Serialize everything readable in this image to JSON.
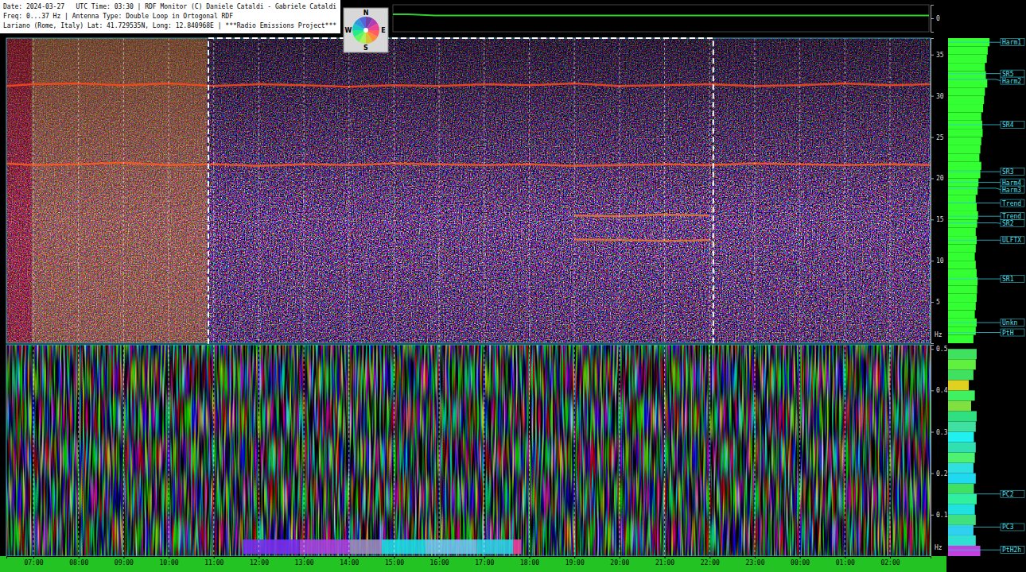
{
  "header": {
    "lines": [
      "Date: 2024-03-27   UTC Time: 03:30 | RDF Monitor (C) Daniele Cataldi - Gabriele Cataldi",
      "Freq: 0...37 Hz | Antenna Type: Double Loop in Ortogonal RDF",
      "Lariano (Rome, Italy) Lat: 41.729535N, Long: 12.840968E | ***Radio Emissions Project***"
    ]
  },
  "compass": {
    "labels": [
      "N",
      "E",
      "S",
      "W"
    ]
  },
  "chart_data": [
    {
      "type": "line",
      "tick_labels": "y",
      "xlim": [
        6.4,
        26.9
      ],
      "ylim": [
        -10,
        10
      ],
      "yticks": [
        0
      ],
      "x": [
        6.4,
        7,
        8,
        9,
        10,
        11,
        12,
        13,
        14,
        15,
        16,
        17,
        18,
        19,
        20,
        21,
        22,
        23,
        24,
        25,
        26,
        26.9
      ],
      "series": [
        {
          "color": "#2fd02f",
          "values": [
            3,
            3,
            2,
            2,
            2,
            2,
            2,
            2,
            2,
            2,
            2,
            2,
            2,
            2,
            2,
            2,
            2,
            2,
            2,
            2,
            2,
            2
          ]
        }
      ]
    },
    {
      "type": "spectrogram",
      "y_label": "Hz",
      "tick_labels": "y",
      "grid": true,
      "xlim": [
        6.4,
        26.9
      ],
      "ylim": [
        0,
        37
      ],
      "xticks": [
        7,
        8,
        9,
        10,
        11,
        12,
        13,
        14,
        15,
        16,
        17,
        18,
        19,
        20,
        21,
        22,
        23,
        24,
        25,
        26
      ],
      "yticks": [
        5,
        10,
        15,
        20,
        25,
        30,
        35
      ],
      "x": [
        6.4,
        7,
        8,
        9,
        10,
        11,
        12,
        13,
        14,
        15,
        16,
        17,
        18,
        19,
        20,
        21,
        22,
        23,
        24,
        25,
        26,
        26.9
      ],
      "series": [
        {
          "color": "#ff4a1a",
          "values": [
            31.2,
            31.4,
            31.5,
            31.3,
            31.5,
            31.2,
            31.4,
            31.3,
            31.1,
            31.3,
            31.2,
            31.4,
            31.3,
            31.5,
            31.2,
            31.3,
            31.4,
            31.2,
            31.3,
            31.5,
            31.3,
            31.4
          ]
        },
        {
          "color": "#ff5a20",
          "values": [
            21.8,
            21.6,
            21.7,
            21.9,
            21.6,
            21.7,
            21.5,
            21.7,
            21.6,
            21.8,
            21.7,
            21.6,
            21.7,
            21.5,
            21.6,
            21.7,
            21.6,
            21.8,
            21.7,
            21.6,
            21.7,
            21.6
          ]
        },
        {
          "color": "#e87830",
          "values": [
            null,
            null,
            null,
            null,
            null,
            null,
            null,
            null,
            null,
            null,
            null,
            null,
            null,
            15.5,
            15.4,
            15.6,
            15.5,
            null,
            null,
            null,
            null,
            null
          ]
        },
        {
          "color": "#e87830",
          "values": [
            null,
            null,
            null,
            null,
            null,
            null,
            null,
            null,
            null,
            null,
            null,
            null,
            null,
            12.6,
            12.5,
            12.4,
            12.5,
            null,
            null,
            null,
            null,
            null
          ]
        }
      ],
      "regions": [
        {
          "x": [
            6.4,
            6.96
          ],
          "color": "#d01c0c"
        },
        {
          "x": [
            6.96,
            10.85
          ],
          "color": "#d88a28"
        }
      ],
      "highlight": {
        "x": [
          10.88,
          22.08
        ]
      }
    },
    {
      "type": "spectrogram",
      "y_label": "Hz",
      "grid": true,
      "xlim": [
        6.4,
        26.9
      ],
      "ylim": [
        0,
        0.51
      ],
      "xticks": [
        {
          "value": 7,
          "label": "07:00"
        },
        {
          "value": 8,
          "label": "08:00"
        },
        {
          "value": 9,
          "label": "09:00"
        },
        {
          "value": 10,
          "label": "10:00"
        },
        {
          "value": 11,
          "label": "11:00"
        },
        {
          "value": 12,
          "label": "12:00"
        },
        {
          "value": 13,
          "label": "13:00"
        },
        {
          "value": 14,
          "label": "14:00"
        },
        {
          "value": 15,
          "label": "15:00"
        },
        {
          "value": 16,
          "label": "16:00"
        },
        {
          "value": 17,
          "label": "17:00"
        },
        {
          "value": 18,
          "label": "18:00"
        },
        {
          "value": 19,
          "label": "19:00"
        },
        {
          "value": 20,
          "label": "20:00"
        },
        {
          "value": 21,
          "label": "21:00"
        },
        {
          "value": 22,
          "label": "22:00"
        },
        {
          "value": 23,
          "label": "23:00"
        },
        {
          "value": 24,
          "label": "00:00"
        },
        {
          "value": 25,
          "label": "01:00"
        },
        {
          "value": 26,
          "label": "02:00"
        }
      ],
      "yticks": [
        0.1,
        0.2,
        0.3,
        0.4,
        0.5
      ],
      "bands": [
        {
          "x": [
            11.64,
            12.9
          ],
          "y": [
            0.005,
            0.04
          ],
          "color": "#7a30f0"
        },
        {
          "x": [
            12.9,
            14.02
          ],
          "y": [
            0.005,
            0.04
          ],
          "color": "#a844e0"
        },
        {
          "x": [
            14.02,
            14.73
          ],
          "y": [
            0.005,
            0.04
          ],
          "color": "#9c8cc0"
        },
        {
          "x": [
            14.73,
            15.7
          ],
          "y": [
            0.005,
            0.04
          ],
          "color": "#20dce8"
        },
        {
          "x": [
            15.7,
            16.84
          ],
          "y": [
            0.005,
            0.04
          ],
          "color": "#70c8f0"
        },
        {
          "x": [
            16.84,
            17.64
          ],
          "y": [
            0.005,
            0.04
          ],
          "color": "#30d0e8"
        },
        {
          "x": [
            17.64,
            17.82
          ],
          "y": [
            0.005,
            0.04
          ],
          "color": "#f040a0"
        }
      ]
    },
    {
      "type": "histogram",
      "orientation": "horizontal",
      "tick_labels": false,
      "color": "#33ff33",
      "xlim": [
        0,
        1
      ],
      "ylim": [
        0,
        37
      ],
      "bins": [
        0,
        1,
        2,
        3,
        4,
        5,
        6,
        7,
        8,
        9,
        10,
        11,
        12,
        13,
        14,
        15,
        16,
        17,
        18,
        19,
        20,
        21,
        22,
        23,
        24,
        25,
        26,
        27,
        28,
        29,
        30,
        31,
        32,
        33,
        34,
        35,
        36,
        37
      ],
      "values": [
        0.55,
        0.6,
        0.62,
        0.58,
        0.6,
        0.62,
        0.63,
        0.64,
        0.62,
        0.6,
        0.58,
        0.6,
        0.62,
        0.6,
        0.63,
        0.65,
        0.62,
        0.6,
        0.64,
        0.66,
        0.7,
        0.72,
        0.68,
        0.7,
        0.72,
        0.75,
        0.74,
        0.72,
        0.76,
        0.78,
        0.8,
        0.85,
        0.82,
        0.8,
        0.84,
        0.86,
        0.9
      ],
      "annotations": [
        {
          "label": "Harm1",
          "y": 36.5
        },
        {
          "label": "SR5",
          "y": 32.7
        },
        {
          "label": "Harm2",
          "y": 32.0
        },
        {
          "label": "SR4",
          "y": 26.5
        },
        {
          "label": "SR3",
          "y": 20.8
        },
        {
          "label": "Harm4",
          "y": 19.5
        },
        {
          "label": "Harm3",
          "y": 18.8
        },
        {
          "label": "Trend",
          "y": 17.0
        },
        {
          "label": "Trend",
          "y": 15.4
        },
        {
          "label": "SR2",
          "y": 14.6
        },
        {
          "label": "ULFTX",
          "y": 12.5
        },
        {
          "label": "SR1",
          "y": 7.8
        },
        {
          "label": "Unkn",
          "y": 2.5
        },
        {
          "label": "PtH",
          "y": 1.3
        }
      ]
    },
    {
      "type": "histogram",
      "orientation": "horizontal",
      "tick_labels": false,
      "xlim": [
        0,
        1
      ],
      "ylim": [
        0,
        0.51
      ],
      "bins": [
        0,
        0.025,
        0.05,
        0.075,
        0.1,
        0.125,
        0.15,
        0.175,
        0.2,
        0.225,
        0.25,
        0.275,
        0.3,
        0.325,
        0.35,
        0.375,
        0.4,
        0.425,
        0.45,
        0.475,
        0.5
      ],
      "values": [
        0.7,
        0.6,
        0.55,
        0.6,
        0.58,
        0.62,
        0.56,
        0.6,
        0.55,
        0.58,
        0.6,
        0.56,
        0.6,
        0.62,
        0.5,
        0.58,
        0.45,
        0.55,
        0.6,
        0.62
      ],
      "colors": [
        "#c040e0",
        "#30e0d0",
        "#30d0f0",
        "#40e080",
        "#20e0e0",
        "#30f0a0",
        "#40e060",
        "#20d8f0",
        "#30e0e0",
        "#50f070",
        "#30e0b0",
        "#20f0f0",
        "#40e0a0",
        "#30e080",
        "#80e040",
        "#40f060",
        "#e0d020",
        "#40e060",
        "#60f040",
        "#40e060"
      ],
      "annotations": [
        {
          "label": "PC2",
          "y": 0.15
        },
        {
          "label": "PC3",
          "y": 0.07
        },
        {
          "label": "PtH2h",
          "y": 0.015
        }
      ]
    }
  ]
}
